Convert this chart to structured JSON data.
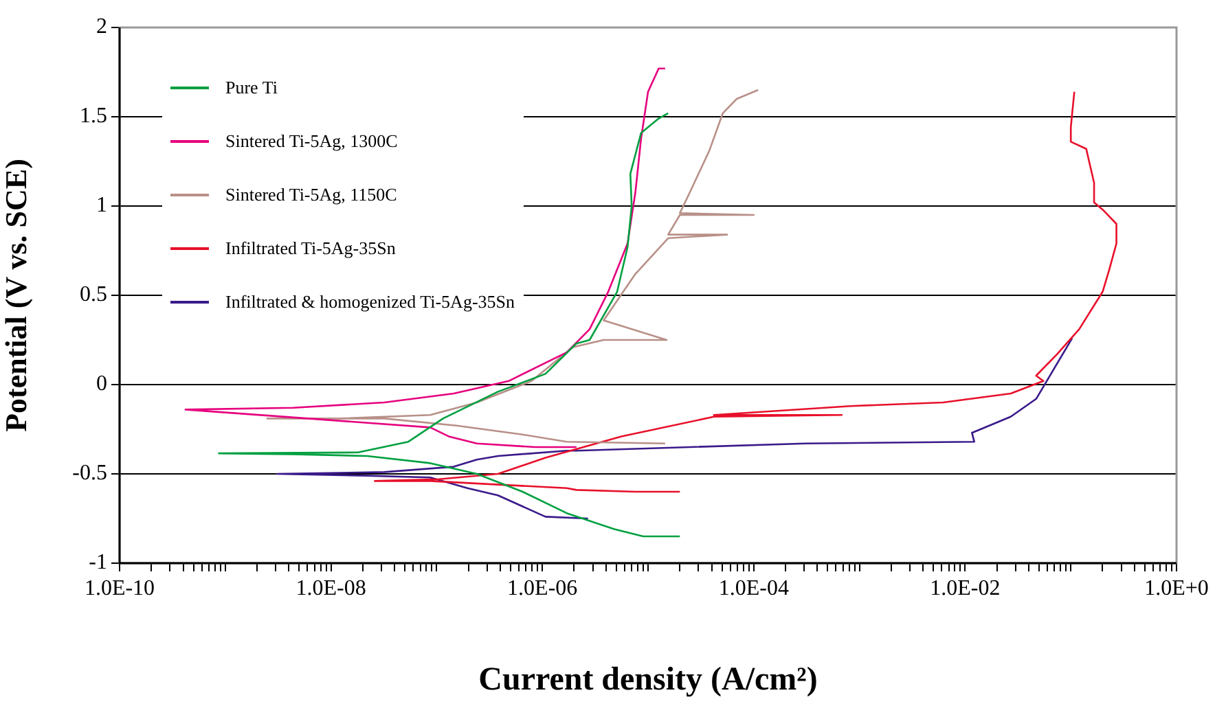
{
  "chart_data": {
    "type": "line",
    "xlabel": "Current density (A/cm²)",
    "ylabel": "Potential (V vs. SCE)",
    "log": "x",
    "grid": "y",
    "legend": "top left",
    "marker": "none",
    "line_style": "solid",
    "xlim": [
      1e-10,
      1
    ],
    "ylim": [
      -1,
      2
    ],
    "yticks": [
      -1,
      -0.5,
      0,
      0.5,
      1,
      1.5,
      2
    ],
    "xticks": [
      {
        "value": 1e-10,
        "label": "1.0E-10"
      },
      {
        "value": 2e-10,
        "label": null
      },
      {
        "value": 3e-10,
        "label": null
      },
      {
        "value": 4e-10,
        "label": null
      },
      {
        "value": 5e-10,
        "label": null
      },
      {
        "value": 6e-10,
        "label": null
      },
      {
        "value": 7e-10,
        "label": null
      },
      {
        "value": 8e-10,
        "label": null
      },
      {
        "value": 9e-10,
        "label": null
      },
      {
        "value": 1e-09,
        "label": null
      },
      {
        "value": 2e-09,
        "label": null
      },
      {
        "value": 3e-09,
        "label": null
      },
      {
        "value": 4e-09,
        "label": null
      },
      {
        "value": 5e-09,
        "label": null
      },
      {
        "value": 6e-09,
        "label": null
      },
      {
        "value": 7e-09,
        "label": null
      },
      {
        "value": 8e-09,
        "label": null
      },
      {
        "value": 9e-09,
        "label": null
      },
      {
        "value": 1e-08,
        "label": "1.0E-08"
      },
      {
        "value": 2e-08,
        "label": null
      },
      {
        "value": 3e-08,
        "label": null
      },
      {
        "value": 4e-08,
        "label": null
      },
      {
        "value": 5e-08,
        "label": null
      },
      {
        "value": 6e-08,
        "label": null
      },
      {
        "value": 7e-08,
        "label": null
      },
      {
        "value": 8e-08,
        "label": null
      },
      {
        "value": 9e-08,
        "label": null
      },
      {
        "value": 1e-07,
        "label": null
      },
      {
        "value": 2e-07,
        "label": null
      },
      {
        "value": 3e-07,
        "label": null
      },
      {
        "value": 4e-07,
        "label": null
      },
      {
        "value": 5e-07,
        "label": null
      },
      {
        "value": 6e-07,
        "label": null
      },
      {
        "value": 7e-07,
        "label": null
      },
      {
        "value": 8e-07,
        "label": null
      },
      {
        "value": 9e-07,
        "label": null
      },
      {
        "value": 1e-06,
        "label": "1.0E-06"
      },
      {
        "value": 2e-06,
        "label": null
      },
      {
        "value": 3e-06,
        "label": null
      },
      {
        "value": 4e-06,
        "label": null
      },
      {
        "value": 5e-06,
        "label": null
      },
      {
        "value": 6e-06,
        "label": null
      },
      {
        "value": 7e-06,
        "label": null
      },
      {
        "value": 8e-06,
        "label": null
      },
      {
        "value": 9e-06,
        "label": null
      },
      {
        "value": 1e-05,
        "label": null
      },
      {
        "value": 2e-05,
        "label": null
      },
      {
        "value": 3e-05,
        "label": null
      },
      {
        "value": 4e-05,
        "label": null
      },
      {
        "value": 5e-05,
        "label": null
      },
      {
        "value": 6e-05,
        "label": null
      },
      {
        "value": 7e-05,
        "label": null
      },
      {
        "value": 8e-05,
        "label": null
      },
      {
        "value": 9e-05,
        "label": null
      },
      {
        "value": 0.0001,
        "label": "1.0E-04"
      },
      {
        "value": 0.0002,
        "label": null
      },
      {
        "value": 0.0003,
        "label": null
      },
      {
        "value": 0.0004,
        "label": null
      },
      {
        "value": 0.0005,
        "label": null
      },
      {
        "value": 0.0006,
        "label": null
      },
      {
        "value": 0.0007,
        "label": null
      },
      {
        "value": 0.0008,
        "label": null
      },
      {
        "value": 0.0009,
        "label": null
      },
      {
        "value": 0.001,
        "label": null
      },
      {
        "value": 0.002,
        "label": null
      },
      {
        "value": 0.003,
        "label": null
      },
      {
        "value": 0.004,
        "label": null
      },
      {
        "value": 0.005,
        "label": null
      },
      {
        "value": 0.006,
        "label": null
      },
      {
        "value": 0.007,
        "label": null
      },
      {
        "value": 0.008,
        "label": null
      },
      {
        "value": 0.009,
        "label": null
      },
      {
        "value": 0.01,
        "label": "1.0E-02"
      },
      {
        "value": 0.02,
        "label": null
      },
      {
        "value": 0.03,
        "label": null
      },
      {
        "value": 0.04,
        "label": null
      },
      {
        "value": 0.05,
        "label": null
      },
      {
        "value": 0.06,
        "label": null
      },
      {
        "value": 0.07,
        "label": null
      },
      {
        "value": 0.08,
        "label": null
      },
      {
        "value": 0.09,
        "label": null
      },
      {
        "value": 0.1,
        "label": null
      },
      {
        "value": 0.2,
        "label": null
      },
      {
        "value": 0.3,
        "label": null
      },
      {
        "value": 0.4,
        "label": null
      },
      {
        "value": 0.5,
        "label": null
      },
      {
        "value": 0.6,
        "label": null
      },
      {
        "value": 0.7,
        "label": null
      },
      {
        "value": 0.8,
        "label": null
      },
      {
        "value": 0.9,
        "label": null
      },
      {
        "value": 1,
        "label": "1.0E+0"
      }
    ],
    "series": [
      {
        "name": "Pure Ti",
        "color": "#00a040",
        "x": [
          2e-05,
          9e-06,
          4.8e-06,
          1.7e-06,
          6.5e-07,
          2.4e-07,
          8.7e-08,
          2.2e-08,
          4.4e-09,
          8.7e-10,
          1.8e-08,
          5.4e-08,
          1.15e-07,
          3.8e-07,
          1.07e-06,
          2.1e-06,
          2.8e-06,
          5.1e-06,
          6.4e-06,
          7e-06,
          6.8e-06,
          8.6e-06,
          1.26e-05,
          1.55e-05
        ],
        "values": [
          -0.85,
          -0.85,
          -0.81,
          -0.72,
          -0.6,
          -0.5,
          -0.44,
          -0.4,
          -0.39,
          -0.385,
          -0.38,
          -0.32,
          -0.19,
          -0.04,
          0.06,
          0.23,
          0.25,
          0.52,
          0.77,
          1.0,
          1.18,
          1.41,
          1.49,
          1.52
        ]
      },
      {
        "name": "Sintered Ti-5Ag, 1300C",
        "color": "#e6007e",
        "x": [
          2.1e-06,
          8.5e-07,
          2.4e-07,
          1.3e-07,
          8.7e-08,
          4.2e-10,
          4.4e-09,
          3.2e-08,
          1.45e-07,
          4.8e-07,
          1.7e-06,
          2.8e-06,
          4.2e-06,
          6.4e-06,
          7.6e-06,
          8.6e-06,
          1e-05,
          1.26e-05,
          1.45e-05
        ],
        "values": [
          -0.35,
          -0.35,
          -0.33,
          -0.29,
          -0.24,
          -0.14,
          -0.13,
          -0.1,
          -0.05,
          0.02,
          0.18,
          0.31,
          0.52,
          0.79,
          1.08,
          1.38,
          1.64,
          1.77,
          1.77
        ]
      },
      {
        "name": "Sintered Ti-5Ag, 1150C",
        "color": "#b89088",
        "x": [
          1.45e-05,
          1.7e-06,
          6.5e-07,
          1.55e-07,
          3.2e-08,
          2.5e-09,
          1.2e-08,
          8.7e-08,
          2.4e-07,
          7.9e-07,
          1.95e-06,
          3.8e-06,
          1.5e-05,
          3.8e-06,
          7.6e-06,
          1.55e-05,
          5.6e-05,
          1.55e-05,
          2e-05,
          0.0001,
          2e-05,
          2.5e-05,
          3.8e-05,
          5.1e-05,
          6.9e-05,
          0.00011
        ],
        "values": [
          -0.33,
          -0.32,
          -0.28,
          -0.23,
          -0.19,
          -0.19,
          -0.19,
          -0.17,
          -0.1,
          0.02,
          0.21,
          0.25,
          0.25,
          0.36,
          0.62,
          0.82,
          0.84,
          0.84,
          0.95,
          0.95,
          0.96,
          1.08,
          1.31,
          1.52,
          1.6,
          1.65
        ]
      },
      {
        "name": "Infiltrated Ti-5Ag-35Sn",
        "color": "#e8102a",
        "x": [
          2e-05,
          7.6e-06,
          2.1e-06,
          1.7e-06,
          3.8e-07,
          8.7e-08,
          2.6e-08,
          1.05e-07,
          3.8e-07,
          1.07e-06,
          5.6e-06,
          4.2e-05,
          0.00068,
          4.2e-05,
          0.00083,
          0.0062,
          0.027,
          0.055,
          0.047,
          0.074,
          0.12,
          0.2,
          0.23,
          0.27,
          0.27,
          0.2,
          0.166,
          0.166,
          0.145,
          0.14,
          0.1,
          0.1,
          0.103,
          0.108
        ],
        "values": [
          -0.6,
          -0.6,
          -0.59,
          -0.58,
          -0.56,
          -0.54,
          -0.54,
          -0.53,
          -0.5,
          -0.41,
          -0.29,
          -0.18,
          -0.17,
          -0.17,
          -0.12,
          -0.1,
          -0.05,
          0.02,
          0.05,
          0.17,
          0.31,
          0.52,
          0.64,
          0.79,
          0.9,
          0.98,
          1.02,
          1.13,
          1.28,
          1.32,
          1.36,
          1.44,
          1.52,
          1.64
        ]
      },
      {
        "name": "Infiltrated & homogenized Ti-5Ag-35Sn",
        "color": "#3a1a8a",
        "x": [
          2.7e-06,
          1.07e-06,
          3.8e-07,
          1.95e-07,
          8.7e-08,
          2.2e-08,
          3.1e-09,
          3.2e-08,
          1.45e-07,
          2.4e-07,
          3.8e-07,
          1.7e-06,
          2.1e-06,
          2.5e-05,
          0.00031,
          0.0122,
          0.0116,
          0.027,
          0.047,
          0.068,
          0.103
        ],
        "values": [
          -0.75,
          -0.74,
          -0.62,
          -0.58,
          -0.52,
          -0.51,
          -0.5,
          -0.49,
          -0.46,
          -0.42,
          -0.4,
          -0.37,
          -0.37,
          -0.35,
          -0.33,
          -0.32,
          -0.27,
          -0.18,
          -0.08,
          0.08,
          0.26
        ]
      }
    ]
  }
}
